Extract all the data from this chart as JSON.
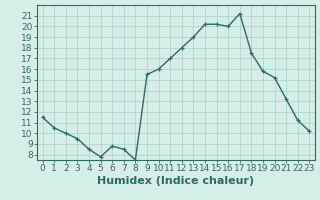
{
  "x": [
    0,
    1,
    2,
    3,
    4,
    5,
    6,
    7,
    8,
    9,
    10,
    11,
    12,
    13,
    14,
    15,
    16,
    17,
    18,
    19,
    20,
    21,
    22,
    23
  ],
  "y": [
    11.5,
    10.5,
    10.0,
    9.5,
    8.5,
    7.8,
    8.8,
    8.5,
    7.5,
    15.5,
    16.0,
    17.0,
    18.0,
    19.0,
    20.2,
    20.2,
    20.0,
    21.2,
    17.5,
    15.8,
    15.2,
    13.2,
    11.2,
    10.2
  ],
  "xlabel": "Humidex (Indice chaleur)",
  "xlim": [
    -0.5,
    23.5
  ],
  "ylim": [
    7.5,
    22.0
  ],
  "xticks": [
    0,
    1,
    2,
    3,
    4,
    5,
    6,
    7,
    8,
    9,
    10,
    11,
    12,
    13,
    14,
    15,
    16,
    17,
    18,
    19,
    20,
    21,
    22,
    23
  ],
  "yticks": [
    8,
    9,
    10,
    11,
    12,
    13,
    14,
    15,
    16,
    17,
    18,
    19,
    20,
    21
  ],
  "line_color": "#2F6B5E",
  "marker": "+",
  "bg_color": "#D6EEE8",
  "grid_color": "#AACFC7",
  "xlabel_fontsize": 8,
  "tick_fontsize": 6.5,
  "linewidth": 1.0,
  "markersize": 3.5
}
